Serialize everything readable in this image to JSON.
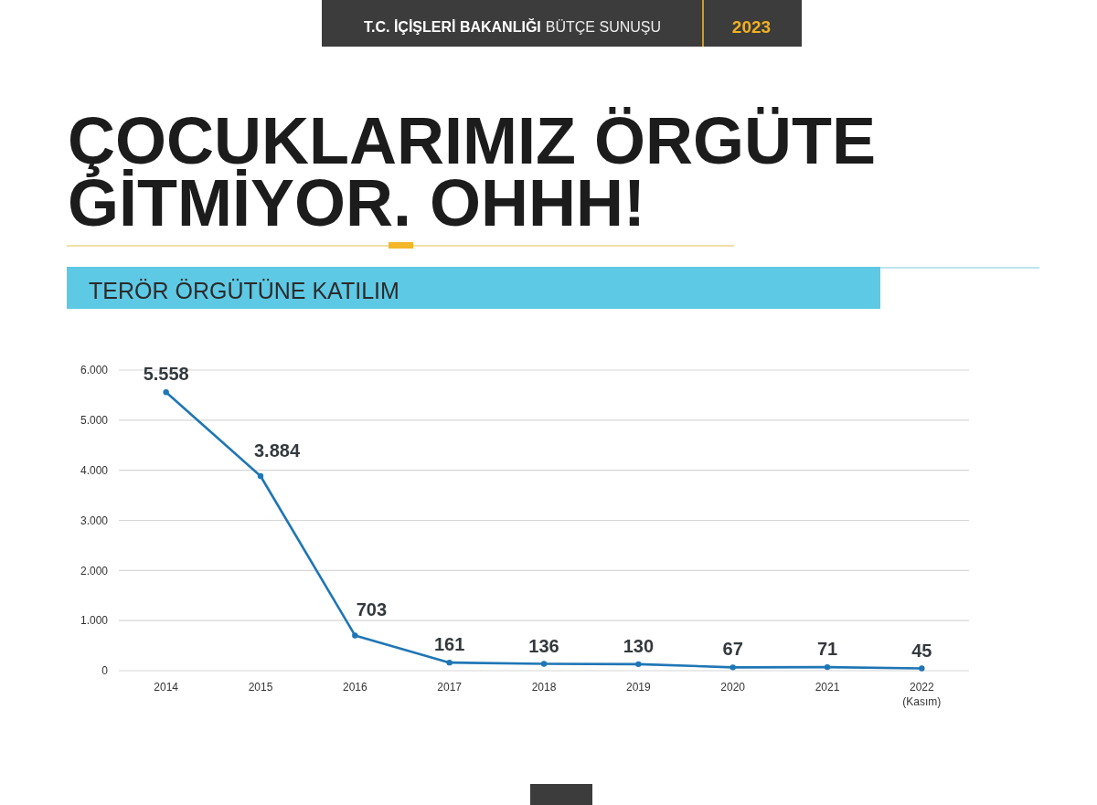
{
  "chart_data": {
    "type": "line",
    "title": "ÇOCUKLARIMIZ ÖRGÜTE GİTMİYOR. OHHH!",
    "subtitle": "TERÖR ÖRGÜTÜNE KATILIM",
    "annotations": [
      "T.C. İÇİŞLERİ BAKANLIĞI",
      "BÜTÇE SUNUŞU",
      "2023"
    ],
    "categories": [
      "2014",
      "2015",
      "2016",
      "2017",
      "2018",
      "2019",
      "2020",
      "2021",
      "2022 (Kasım)"
    ],
    "series": [
      {
        "color": "#1f76b5",
        "values": [
          5558,
          3884,
          703,
          161,
          136,
          130,
          67,
          71,
          45
        ],
        "value_labels": [
          "5.558",
          "3.884",
          "703",
          "161",
          "136",
          "130",
          "67",
          "71",
          "45"
        ]
      }
    ],
    "ylim": [
      0,
      6000
    ],
    "yticks": [
      0,
      {
        "value": 1000,
        "label": "1.000"
      },
      {
        "value": 2000,
        "label": "2.000"
      },
      {
        "value": 3000,
        "label": "3.000"
      },
      {
        "value": 4000,
        "label": "4.000"
      },
      {
        "value": 5000,
        "label": "5.000"
      },
      {
        "value": 6000,
        "label": "6.000"
      }
    ],
    "grid": "y",
    "marker": "circle",
    "line_style": "solid"
  }
}
